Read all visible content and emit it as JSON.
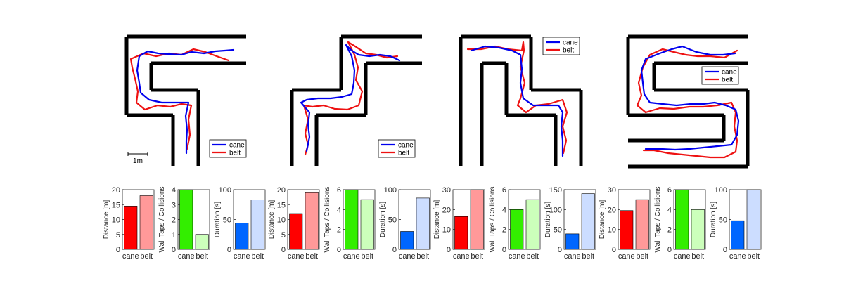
{
  "scale_bar_label": "1m",
  "maps": [
    {
      "id": "map-1",
      "legend": [
        "cane",
        "belt"
      ],
      "legend_pos": "bottom-right",
      "show_scale_bar": true,
      "walls": [
        [
          [
            180,
            52
          ],
          [
            350,
            52
          ]
        ],
        [
          [
            180,
            52
          ],
          [
            180,
            164
          ]
        ],
        [
          [
            180,
            164
          ],
          [
            246,
            164
          ]
        ],
        [
          [
            246,
            164
          ],
          [
            246,
            237
          ]
        ],
        [
          [
            350,
            90
          ],
          [
            215,
            90
          ]
        ],
        [
          [
            215,
            90
          ],
          [
            215,
            128
          ]
        ],
        [
          [
            215,
            128
          ],
          [
            282,
            128
          ]
        ],
        [
          [
            282,
            128
          ],
          [
            282,
            237
          ]
        ]
      ],
      "cane": [
        [
          332,
          71
        ],
        [
          320,
          72
        ],
        [
          306,
          73
        ],
        [
          290,
          76
        ],
        [
          272,
          74
        ],
        [
          258,
          78
        ],
        [
          240,
          77
        ],
        [
          225,
          76
        ],
        [
          210,
          73
        ],
        [
          198,
          80
        ],
        [
          195,
          100
        ],
        [
          198,
          118
        ],
        [
          200,
          132
        ],
        [
          212,
          142
        ],
        [
          230,
          146
        ],
        [
          248,
          146
        ],
        [
          262,
          146
        ],
        [
          268,
          146
        ],
        [
          264,
          165
        ],
        [
          266,
          185
        ],
        [
          265,
          200
        ],
        [
          265,
          218
        ]
      ],
      "belt": [
        [
          325,
          86
        ],
        [
          308,
          80
        ],
        [
          292,
          74
        ],
        [
          275,
          70
        ],
        [
          258,
          78
        ],
        [
          240,
          76
        ],
        [
          222,
          80
        ],
        [
          204,
          76
        ],
        [
          186,
          84
        ],
        [
          188,
          96
        ],
        [
          192,
          112
        ],
        [
          196,
          130
        ],
        [
          194,
          146
        ],
        [
          206,
          156
        ],
        [
          224,
          150
        ],
        [
          242,
          152
        ],
        [
          258,
          148
        ],
        [
          272,
          150
        ],
        [
          268,
          170
        ],
        [
          270,
          192
        ],
        [
          266,
          212
        ]
      ]
    },
    {
      "id": "map-2",
      "legend": [
        "cane",
        "belt"
      ],
      "legend_pos": "bottom-right",
      "show_scale_bar": false,
      "walls": [
        [
          [
            485,
            52
          ],
          [
            600,
            52
          ]
        ],
        [
          [
            485,
            52
          ],
          [
            485,
            128
          ]
        ],
        [
          [
            485,
            128
          ],
          [
            415,
            128
          ]
        ],
        [
          [
            415,
            128
          ],
          [
            415,
            237
          ]
        ],
        [
          [
            600,
            90
          ],
          [
            520,
            90
          ]
        ],
        [
          [
            520,
            90
          ],
          [
            520,
            164
          ]
        ],
        [
          [
            520,
            164
          ],
          [
            450,
            164
          ]
        ],
        [
          [
            450,
            164
          ],
          [
            450,
            237
          ]
        ]
      ],
      "cane": [
        [
          568,
          86
        ],
        [
          555,
          80
        ],
        [
          540,
          78
        ],
        [
          525,
          80
        ],
        [
          510,
          78
        ],
        [
          500,
          72
        ],
        [
          492,
          64
        ],
        [
          500,
          80
        ],
        [
          504,
          100
        ],
        [
          503,
          118
        ],
        [
          500,
          134
        ],
        [
          486,
          138
        ],
        [
          470,
          140
        ],
        [
          452,
          140
        ],
        [
          436,
          142
        ],
        [
          428,
          146
        ],
        [
          440,
          160
        ],
        [
          438,
          178
        ],
        [
          440,
          195
        ],
        [
          436,
          215
        ]
      ],
      "belt": [
        [
          565,
          80
        ],
        [
          550,
          82
        ],
        [
          535,
          78
        ],
        [
          520,
          76
        ],
        [
          505,
          66
        ],
        [
          495,
          60
        ],
        [
          504,
          78
        ],
        [
          509,
          96
        ],
        [
          506,
          114
        ],
        [
          515,
          130
        ],
        [
          510,
          150
        ],
        [
          494,
          156
        ],
        [
          476,
          155
        ],
        [
          460,
          150
        ],
        [
          444,
          152
        ],
        [
          432,
          150
        ],
        [
          438,
          170
        ],
        [
          434,
          190
        ],
        [
          438,
          206
        ],
        [
          434,
          220
        ]
      ]
    },
    {
      "id": "map-3",
      "legend": [
        "cane",
        "belt"
      ],
      "legend_pos": "top-right",
      "show_scale_bar": false,
      "walls": [
        [
          [
            655,
            52
          ],
          [
            755,
            52
          ]
        ],
        [
          [
            755,
            52
          ],
          [
            755,
            128
          ]
        ],
        [
          [
            755,
            128
          ],
          [
            826,
            128
          ]
        ],
        [
          [
            826,
            128
          ],
          [
            826,
            237
          ]
        ],
        [
          [
            655,
            52
          ],
          [
            655,
            237
          ]
        ],
        [
          [
            685,
            237
          ],
          [
            685,
            90
          ]
        ],
        [
          [
            685,
            90
          ],
          [
            720,
            90
          ]
        ],
        [
          [
            720,
            90
          ],
          [
            720,
            164
          ]
        ],
        [
          [
            720,
            164
          ],
          [
            790,
            164
          ]
        ],
        [
          [
            790,
            164
          ],
          [
            790,
            237
          ]
        ]
      ],
      "cane": [
        [
          670,
          72
        ],
        [
          690,
          66
        ],
        [
          710,
          68
        ],
        [
          728,
          72
        ],
        [
          740,
          78
        ],
        [
          742,
          98
        ],
        [
          740,
          118
        ],
        [
          744,
          140
        ],
        [
          758,
          150
        ],
        [
          776,
          150
        ],
        [
          794,
          150
        ],
        [
          800,
          160
        ],
        [
          798,
          180
        ],
        [
          800,
          200
        ],
        [
          800,
          222
        ]
      ],
      "belt": [
        [
          665,
          70
        ],
        [
          684,
          70
        ],
        [
          704,
          66
        ],
        [
          722,
          70
        ],
        [
          742,
          72
        ],
        [
          744,
          60
        ],
        [
          745,
          72
        ],
        [
          740,
          95
        ],
        [
          746,
          118
        ],
        [
          740,
          140
        ],
        [
          736,
          150
        ],
        [
          748,
          160
        ],
        [
          762,
          150
        ],
        [
          780,
          148
        ],
        [
          800,
          142
        ],
        [
          806,
          160
        ],
        [
          800,
          180
        ],
        [
          805,
          200
        ],
        [
          801,
          218
        ]
      ]
    },
    {
      "id": "map-4",
      "legend": [
        "cane",
        "belt"
      ],
      "legend_pos": "right",
      "show_scale_bar": false,
      "walls": [
        [
          [
            893,
            52
          ],
          [
            1063,
            52
          ]
        ],
        [
          [
            893,
            52
          ],
          [
            893,
            164
          ]
        ],
        [
          [
            893,
            164
          ],
          [
            1029,
            164
          ]
        ],
        [
          [
            1029,
            164
          ],
          [
            1029,
            200
          ]
        ],
        [
          [
            1029,
            200
          ],
          [
            893,
            200
          ]
        ],
        [
          [
            1063,
            90
          ],
          [
            930,
            90
          ]
        ],
        [
          [
            930,
            90
          ],
          [
            930,
            128
          ]
        ],
        [
          [
            930,
            128
          ],
          [
            1063,
            128
          ]
        ],
        [
          [
            1063,
            128
          ],
          [
            1063,
            237
          ]
        ],
        [
          [
            1063,
            237
          ],
          [
            893,
            237
          ]
        ]
      ],
      "cane": [
        [
          1045,
          76
        ],
        [
          1028,
          78
        ],
        [
          1010,
          78
        ],
        [
          990,
          74
        ],
        [
          970,
          66
        ],
        [
          955,
          70
        ],
        [
          938,
          76
        ],
        [
          918,
          84
        ],
        [
          912,
          100
        ],
        [
          914,
          118
        ],
        [
          916,
          134
        ],
        [
          924,
          146
        ],
        [
          942,
          148
        ],
        [
          962,
          150
        ],
        [
          982,
          148
        ],
        [
          1000,
          148
        ],
        [
          1016,
          146
        ],
        [
          1032,
          150
        ],
        [
          1046,
          156
        ],
        [
          1050,
          172
        ],
        [
          1048,
          192
        ],
        [
          1040,
          206
        ],
        [
          1020,
          208
        ],
        [
          1000,
          210
        ],
        [
          980,
          212
        ],
        [
          960,
          213
        ],
        [
          940,
          212
        ],
        [
          918,
          212
        ]
      ],
      "belt": [
        [
          1048,
          72
        ],
        [
          1030,
          82
        ],
        [
          1010,
          80
        ],
        [
          992,
          80
        ],
        [
          975,
          78
        ],
        [
          958,
          74
        ],
        [
          942,
          70
        ],
        [
          924,
          78
        ],
        [
          914,
          96
        ],
        [
          908,
          118
        ],
        [
          912,
          136
        ],
        [
          906,
          150
        ],
        [
          918,
          160
        ],
        [
          938,
          154
        ],
        [
          958,
          155
        ],
        [
          980,
          152
        ],
        [
          1000,
          152
        ],
        [
          1020,
          150
        ],
        [
          1040,
          146
        ],
        [
          1046,
          160
        ],
        [
          1044,
          180
        ],
        [
          1048,
          200
        ],
        [
          1046,
          216
        ],
        [
          1030,
          224
        ],
        [
          1010,
          224
        ],
        [
          990,
          222
        ],
        [
          970,
          220
        ],
        [
          950,
          218
        ],
        [
          930,
          214
        ],
        [
          915,
          214
        ]
      ]
    }
  ],
  "chart_data": [
    {
      "type": "bar",
      "categories": [
        "cane",
        "belt"
      ],
      "values": [
        14.5,
        18
      ],
      "ylabel": "Distance [m]",
      "ylim": [
        0,
        20
      ],
      "yticks": [
        0,
        5,
        10,
        15,
        20
      ],
      "colors": [
        "#ff0000",
        "#ff9999"
      ]
    },
    {
      "type": "bar",
      "categories": [
        "cane",
        "belt"
      ],
      "values": [
        4,
        1
      ],
      "ylabel": "Wall Taps / Collisions",
      "ylim": [
        0,
        4
      ],
      "yticks": [
        0,
        1,
        2,
        3,
        4
      ],
      "colors": [
        "#33ee00",
        "#ccffbb"
      ]
    },
    {
      "type": "bar",
      "categories": [
        "cane",
        "belt"
      ],
      "values": [
        44,
        83
      ],
      "ylabel": "Duration [s]",
      "ylim": [
        0,
        100
      ],
      "yticks": [
        0,
        50,
        100
      ],
      "colors": [
        "#0066ff",
        "#ccddff"
      ]
    },
    {
      "type": "bar",
      "categories": [
        "cane",
        "belt"
      ],
      "values": [
        12,
        19
      ],
      "ylabel": "Distance [m]",
      "ylim": [
        0,
        20
      ],
      "yticks": [
        0,
        5,
        10,
        15,
        20
      ],
      "colors": [
        "#ff0000",
        "#ff9999"
      ]
    },
    {
      "type": "bar",
      "categories": [
        "cane",
        "belt"
      ],
      "values": [
        6,
        5
      ],
      "ylabel": "Wall Taps / Collisions",
      "ylim": [
        0,
        6
      ],
      "yticks": [
        0,
        2,
        4,
        6
      ],
      "colors": [
        "#33ee00",
        "#ccffbb"
      ]
    },
    {
      "type": "bar",
      "categories": [
        "cane",
        "belt"
      ],
      "values": [
        30,
        86
      ],
      "ylabel": "Duration [s]",
      "ylim": [
        0,
        100
      ],
      "yticks": [
        0,
        50,
        100
      ],
      "colors": [
        "#0066ff",
        "#ccddff"
      ]
    },
    {
      "type": "bar",
      "categories": [
        "cane",
        "belt"
      ],
      "values": [
        16.5,
        30
      ],
      "ylabel": "Distance [m]",
      "ylim": [
        0,
        30
      ],
      "yticks": [
        0,
        10,
        20,
        30
      ],
      "colors": [
        "#ff0000",
        "#ff9999"
      ]
    },
    {
      "type": "bar",
      "categories": [
        "cane",
        "belt"
      ],
      "values": [
        4,
        5
      ],
      "ylabel": "Wall Taps / Collisions",
      "ylim": [
        0,
        6
      ],
      "yticks": [
        0,
        2,
        4,
        6
      ],
      "colors": [
        "#33ee00",
        "#ccffbb"
      ]
    },
    {
      "type": "bar",
      "categories": [
        "cane",
        "belt"
      ],
      "values": [
        39,
        140
      ],
      "ylabel": "Duration [s]",
      "ylim": [
        0,
        150
      ],
      "yticks": [
        0,
        50,
        100,
        150
      ],
      "colors": [
        "#0066ff",
        "#ccddff"
      ]
    },
    {
      "type": "bar",
      "categories": [
        "cane",
        "belt"
      ],
      "values": [
        19.5,
        25
      ],
      "ylabel": "Distance [m]",
      "ylim": [
        0,
        30
      ],
      "yticks": [
        0,
        10,
        20,
        30
      ],
      "colors": [
        "#ff0000",
        "#ff9999"
      ]
    },
    {
      "type": "bar",
      "categories": [
        "cane",
        "belt"
      ],
      "values": [
        6,
        4
      ],
      "ylabel": "Wall Taps / Collisions",
      "ylim": [
        0,
        6
      ],
      "yticks": [
        0,
        2,
        4,
        6
      ],
      "colors": [
        "#33ee00",
        "#ccffbb"
      ]
    },
    {
      "type": "bar",
      "categories": [
        "cane",
        "belt"
      ],
      "values": [
        48,
        100
      ],
      "ylabel": "Duration [s]",
      "ylim": [
        0,
        100
      ],
      "yticks": [
        0,
        50,
        100
      ],
      "colors": [
        "#0066ff",
        "#ccddff"
      ]
    }
  ],
  "trajectory_colors": {
    "cane": "#0000ee",
    "belt": "#ee1111"
  }
}
